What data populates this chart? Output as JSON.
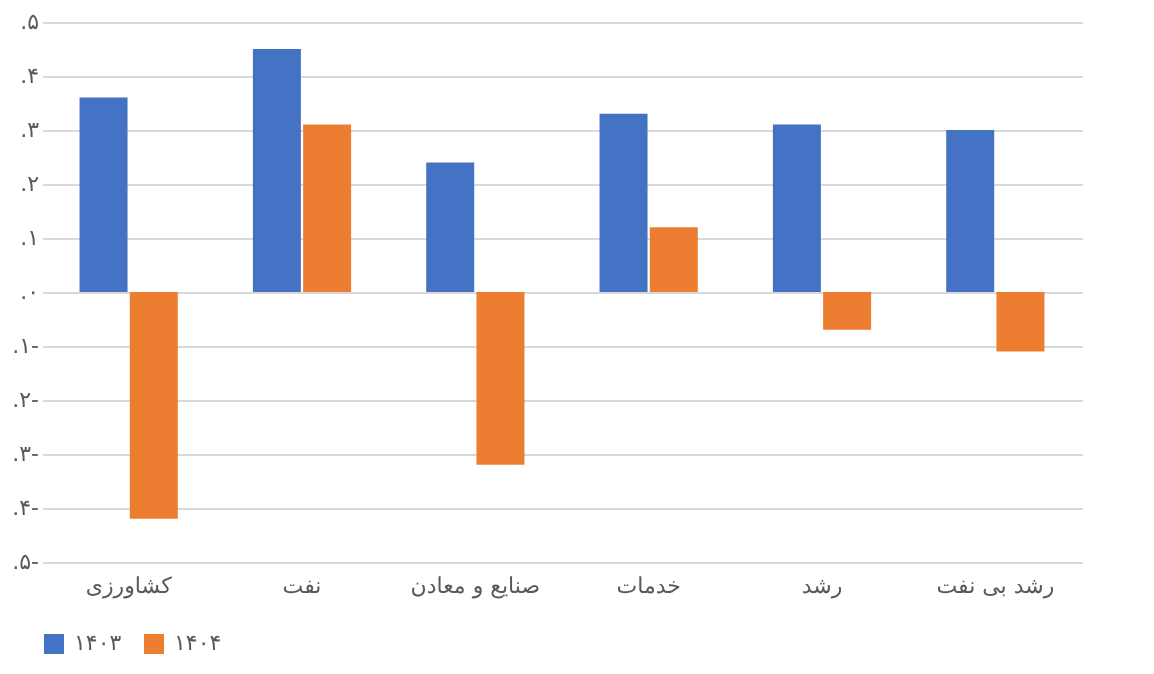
{
  "chart_data": {
    "type": "bar",
    "categories": [
      "کشاورزی",
      "نفت",
      "صنایع و معادن",
      "خدمات",
      "رشد",
      "رشد بی نفت"
    ],
    "series": [
      {
        "name": "۱۴۰۳",
        "color": "#4472c4",
        "values": [
          0.36,
          0.45,
          0.24,
          0.33,
          0.31,
          0.3
        ]
      },
      {
        "name": "۱۴۰۴",
        "color": "#ed7d31",
        "values": [
          -0.42,
          0.31,
          -0.32,
          0.12,
          -0.07,
          -0.11
        ]
      }
    ],
    "ylim": [
      -0.5,
      0.5
    ],
    "yticks": [
      {
        "value": 0.5,
        "label": ".۵"
      },
      {
        "value": 0.4,
        "label": ".۴"
      },
      {
        "value": 0.3,
        "label": ".۳"
      },
      {
        "value": 0.2,
        "label": ".۲"
      },
      {
        "value": 0.1,
        "label": ".۱"
      },
      {
        "value": 0,
        "label": ".۰"
      },
      {
        "value": -0.1,
        "label": ".۱-"
      },
      {
        "value": -0.2,
        "label": ".۲-"
      },
      {
        "value": -0.3,
        "label": ".۳-"
      },
      {
        "value": -0.4,
        "label": ".۴-"
      },
      {
        "value": -0.5,
        "label": ".۵-"
      }
    ],
    "grid": "y",
    "legend": "bottom"
  }
}
